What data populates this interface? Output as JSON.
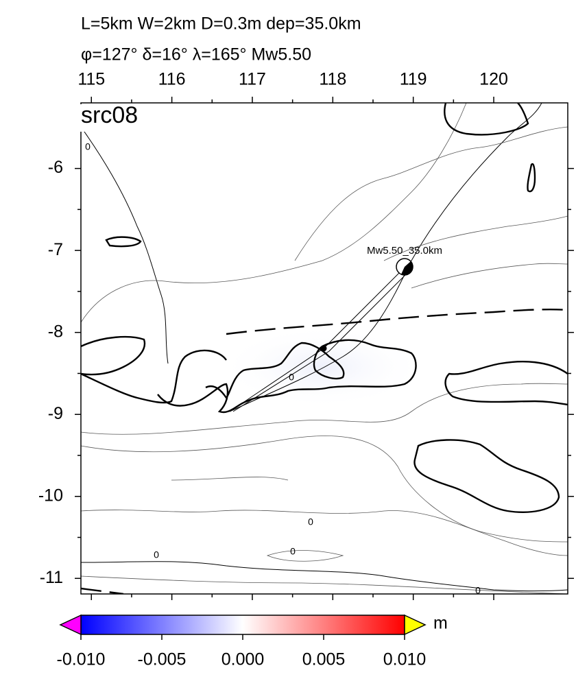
{
  "header": {
    "line1": "L=5km W=2km D=0.3m dep=35.0km",
    "line2": "φ=127° δ=16° λ=165° Mw5.50"
  },
  "map": {
    "label": "src08",
    "xlim": [
      114.87,
      120.92
    ],
    "ylim": [
      -11.19,
      -5.2
    ],
    "xticks": [
      115,
      116,
      117,
      118,
      119,
      120
    ],
    "yticks": [
      -6,
      -7,
      -8,
      -9,
      -10,
      -11
    ],
    "event_label": "Mw5.50_35.0km",
    "contour_label": "0"
  },
  "colorbar": {
    "lim": [
      -0.01,
      0.01
    ],
    "ticks": [
      {
        "value": -0.01,
        "label": "-0.010"
      },
      {
        "value": -0.005,
        "label": "-0.005"
      },
      {
        "value": 0,
        "label": "0.000"
      },
      {
        "value": 0.005,
        "label": "0.005"
      },
      {
        "value": 0.01,
        "label": "0.010"
      }
    ],
    "unit": "m"
  }
}
